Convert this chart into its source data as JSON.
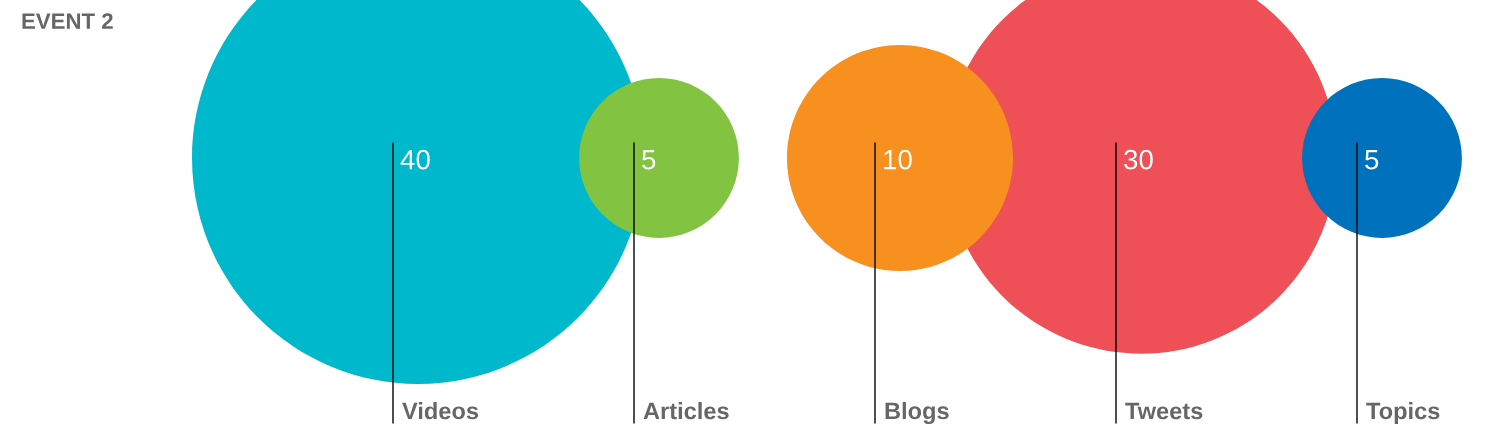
{
  "chart_data": {
    "type": "other",
    "title": "EVENT 2",
    "categories": [
      "Videos",
      "Articles",
      "Blogs",
      "Tweets",
      "Topics"
    ],
    "values": [
      40,
      5,
      10,
      30,
      5
    ],
    "colors": [
      "#00b8cc",
      "#82c341",
      "#f7901e",
      "#ef4f56",
      "#0071bc"
    ],
    "data_labels": true
  }
}
